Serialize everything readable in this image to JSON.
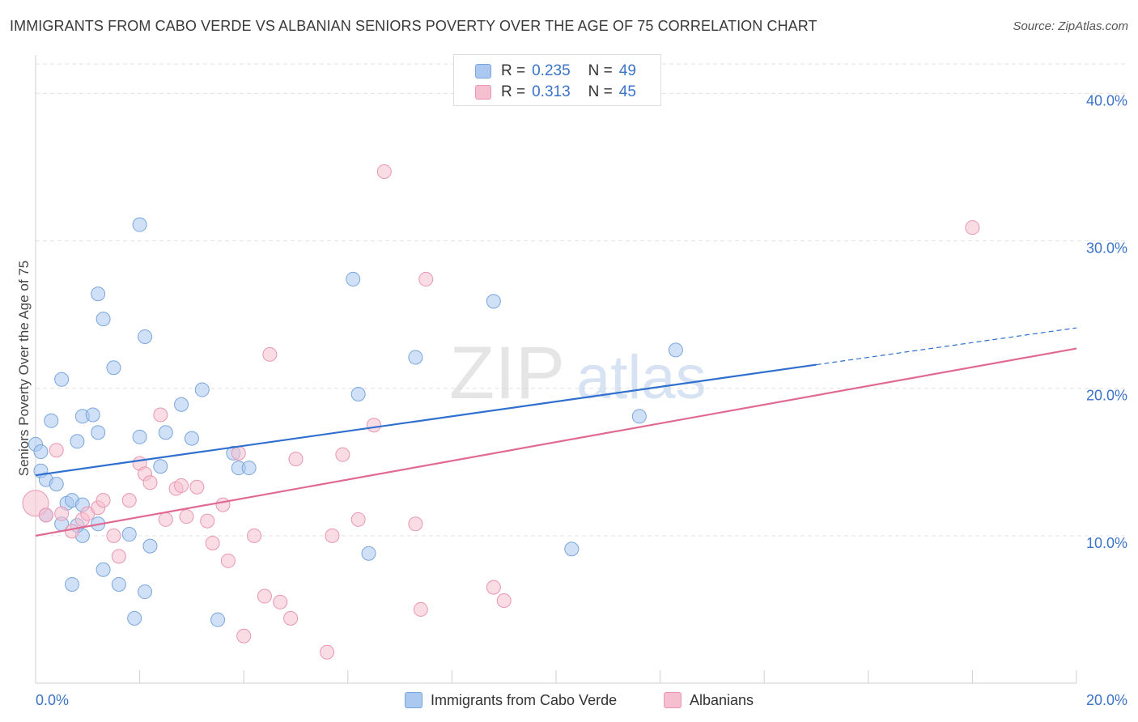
{
  "header": {
    "title": "IMMIGRANTS FROM CABO VERDE VS ALBANIAN SENIORS POVERTY OVER THE AGE OF 75 CORRELATION CHART",
    "source": "Source: ZipAtlas.com"
  },
  "watermark": {
    "part1": "ZIP",
    "part2": "atlas"
  },
  "legend": {
    "rows": [
      {
        "r_label": "R =",
        "r_value": "0.235",
        "n_label": "N =",
        "n_value": "49"
      },
      {
        "r_label": "R =",
        "r_value": "0.313",
        "n_label": "N =",
        "n_value": "45"
      }
    ]
  },
  "bottom_legend": {
    "series1": "Immigrants from Cabo Verde",
    "series2": "Albanians"
  },
  "colors": {
    "blue_fill": "#aac8f0",
    "blue_stroke": "#7aa6dc",
    "blue_line": "#2f6fce",
    "pink_fill": "#f6bfd0",
    "pink_stroke": "#e896b3",
    "pink_line": "#e06a93",
    "tick_label": "#3a73c8"
  },
  "chart_data": {
    "type": "scatter",
    "title": "IMMIGRANTS FROM CABO VERDE VS ALBANIAN SENIORS POVERTY OVER THE AGE OF 75 CORRELATION CHART",
    "xlabel": "",
    "ylabel": "Seniors Poverty Over the Age of 75",
    "xlim": [
      0,
      20
    ],
    "ylim": [
      0,
      42
    ],
    "x_tick_labels": [
      "0.0%",
      "20.0%"
    ],
    "y_ticks": [
      10,
      20,
      30,
      40
    ],
    "y_tick_labels": [
      "10.0%",
      "20.0%",
      "30.0%",
      "40.0%"
    ],
    "grid": true,
    "series": [
      {
        "name": "Immigrants from Cabo Verde",
        "r": 0.235,
        "n": 49,
        "trend": {
          "x0": 0,
          "y0": 14.1,
          "x1": 15.0,
          "y1": 21.6,
          "dashed_to_x": 20.0,
          "dashed_to_y": 24.1
        },
        "points": [
          [
            0.0,
            16.2
          ],
          [
            0.1,
            15.7
          ],
          [
            0.1,
            14.4
          ],
          [
            0.2,
            13.8
          ],
          [
            0.2,
            11.4
          ],
          [
            0.3,
            17.8
          ],
          [
            0.4,
            13.5
          ],
          [
            0.5,
            20.6
          ],
          [
            0.5,
            10.8
          ],
          [
            0.6,
            12.2
          ],
          [
            0.7,
            12.4
          ],
          [
            0.7,
            6.7
          ],
          [
            0.8,
            16.4
          ],
          [
            0.9,
            12.1
          ],
          [
            0.9,
            10.0
          ],
          [
            0.9,
            18.1
          ],
          [
            1.1,
            18.2
          ],
          [
            1.2,
            10.8
          ],
          [
            1.2,
            26.4
          ],
          [
            1.2,
            17.0
          ],
          [
            1.3,
            7.7
          ],
          [
            1.3,
            24.7
          ],
          [
            1.5,
            21.4
          ],
          [
            1.6,
            6.7
          ],
          [
            1.8,
            10.1
          ],
          [
            1.9,
            4.4
          ],
          [
            2.0,
            16.7
          ],
          [
            2.0,
            31.1
          ],
          [
            2.1,
            23.5
          ],
          [
            2.1,
            6.2
          ],
          [
            2.2,
            9.3
          ],
          [
            2.4,
            14.7
          ],
          [
            2.5,
            17.0
          ],
          [
            2.8,
            18.9
          ],
          [
            3.0,
            16.6
          ],
          [
            3.2,
            19.9
          ],
          [
            3.5,
            4.3
          ],
          [
            3.8,
            15.6
          ],
          [
            3.9,
            14.6
          ],
          [
            4.1,
            14.6
          ],
          [
            6.1,
            27.4
          ],
          [
            6.2,
            19.6
          ],
          [
            6.4,
            8.8
          ],
          [
            7.3,
            22.1
          ],
          [
            8.8,
            25.9
          ],
          [
            10.3,
            9.1
          ],
          [
            11.6,
            18.1
          ],
          [
            12.3,
            22.6
          ],
          [
            0.8,
            10.7
          ]
        ]
      },
      {
        "name": "Albanians",
        "r": 0.313,
        "n": 45,
        "trend": {
          "x0": 0,
          "y0": 10.0,
          "x1": 20.0,
          "y1": 22.7
        },
        "points": [
          [
            0.0,
            12.2
          ],
          [
            0.2,
            11.4
          ],
          [
            0.4,
            15.8
          ],
          [
            0.5,
            11.5
          ],
          [
            0.7,
            10.3
          ],
          [
            0.9,
            11.1
          ],
          [
            1.0,
            11.5
          ],
          [
            1.2,
            11.9
          ],
          [
            1.3,
            12.4
          ],
          [
            1.5,
            10.0
          ],
          [
            1.6,
            8.6
          ],
          [
            1.8,
            12.4
          ],
          [
            2.0,
            14.9
          ],
          [
            2.1,
            14.2
          ],
          [
            2.2,
            13.6
          ],
          [
            2.4,
            18.2
          ],
          [
            2.5,
            11.1
          ],
          [
            2.7,
            13.2
          ],
          [
            2.8,
            13.4
          ],
          [
            2.9,
            11.3
          ],
          [
            3.1,
            13.3
          ],
          [
            3.3,
            11.0
          ],
          [
            3.4,
            9.5
          ],
          [
            3.6,
            12.1
          ],
          [
            3.7,
            8.3
          ],
          [
            3.9,
            15.6
          ],
          [
            4.0,
            3.2
          ],
          [
            4.2,
            10.0
          ],
          [
            4.4,
            5.9
          ],
          [
            4.5,
            22.3
          ],
          [
            4.7,
            5.5
          ],
          [
            4.9,
            4.4
          ],
          [
            5.0,
            15.2
          ],
          [
            5.6,
            2.1
          ],
          [
            5.7,
            10.0
          ],
          [
            5.9,
            15.5
          ],
          [
            6.2,
            11.1
          ],
          [
            6.5,
            17.5
          ],
          [
            6.7,
            34.7
          ],
          [
            7.3,
            10.8
          ],
          [
            7.4,
            5.0
          ],
          [
            7.5,
            27.4
          ],
          [
            8.8,
            6.5
          ],
          [
            9.0,
            5.6
          ],
          [
            18.0,
            30.9
          ]
        ]
      }
    ]
  }
}
